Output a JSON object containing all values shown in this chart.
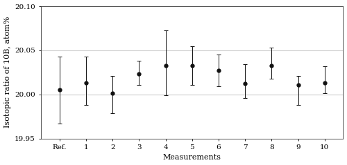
{
  "x_labels": [
    "Ref.",
    "1",
    "2",
    "3",
    "4",
    "5",
    "6",
    "7",
    "8",
    "9",
    "10"
  ],
  "x_positions": [
    0,
    1,
    2,
    3,
    4,
    5,
    6,
    7,
    8,
    9,
    10
  ],
  "y_values": [
    20.005,
    20.013,
    20.001,
    20.023,
    20.033,
    20.033,
    20.027,
    20.012,
    20.033,
    20.011,
    20.013
  ],
  "y_err_low": [
    0.038,
    0.025,
    0.022,
    0.012,
    0.034,
    0.022,
    0.018,
    0.016,
    0.015,
    0.023,
    0.012
  ],
  "y_err_high": [
    0.038,
    0.03,
    0.02,
    0.015,
    0.04,
    0.022,
    0.018,
    0.022,
    0.02,
    0.01,
    0.019
  ],
  "ylim": [
    19.95,
    20.1
  ],
  "yticks": [
    19.95,
    20.0,
    20.05,
    20.1
  ],
  "hlines": [
    20.0,
    20.05
  ],
  "hline_color": "#cccccc",
  "marker": "o",
  "marker_size": 3.5,
  "marker_color": "#111111",
  "line_color": "#111111",
  "capsize": 2.5,
  "xlabel": "Measurements",
  "ylabel": "Isotopic ratio of 10B, atom%",
  "background_color": "#ffffff",
  "axis_color": "#333333",
  "tick_fontsize": 7.5,
  "label_fontsize": 8,
  "font_family": "serif"
}
